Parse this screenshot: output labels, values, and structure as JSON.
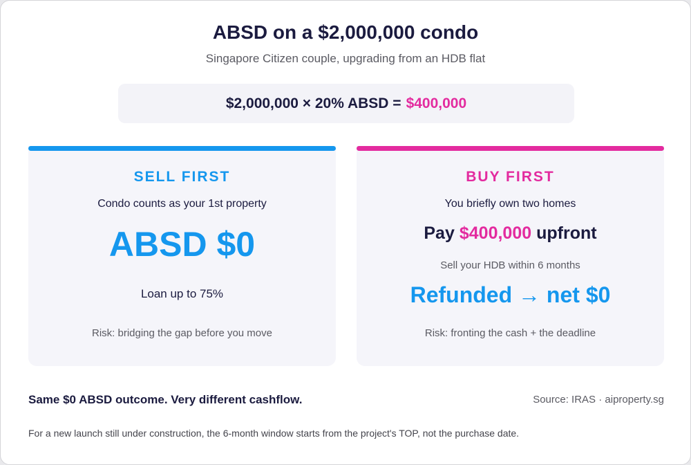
{
  "header": {
    "title": "ABSD on a $2,000,000 condo",
    "subtitle": "Singapore Citizen couple, upgrading from an HDB flat"
  },
  "formula": {
    "expression": "$2,000,000 × 20% ABSD =",
    "result": "$400,000"
  },
  "cards": [
    {
      "heading": "SELL FIRST",
      "note": "Condo counts as your 1st property",
      "headline": "ABSD $0",
      "detail": "Loan up to 75%",
      "risk": "Risk: bridging the gap before you move"
    },
    {
      "heading": "BUY FIRST",
      "note": "You briefly own two homes",
      "pay": {
        "before": "Pay",
        "amount": "$400,000",
        "after": "upfront"
      },
      "detail": "Sell your HDB within 6 months",
      "headline": "Refunded → net $0",
      "risk": "Risk: fronting the cash + the deadline"
    }
  ],
  "footer": {
    "takeaway": "Same $0 ABSD outcome. Very different cashflow.",
    "source": "Source: IRAS · aiproperty.sg",
    "footnote": "For a new launch still under construction, the 6-month window starts from the project's TOP, not the purchase date."
  }
}
